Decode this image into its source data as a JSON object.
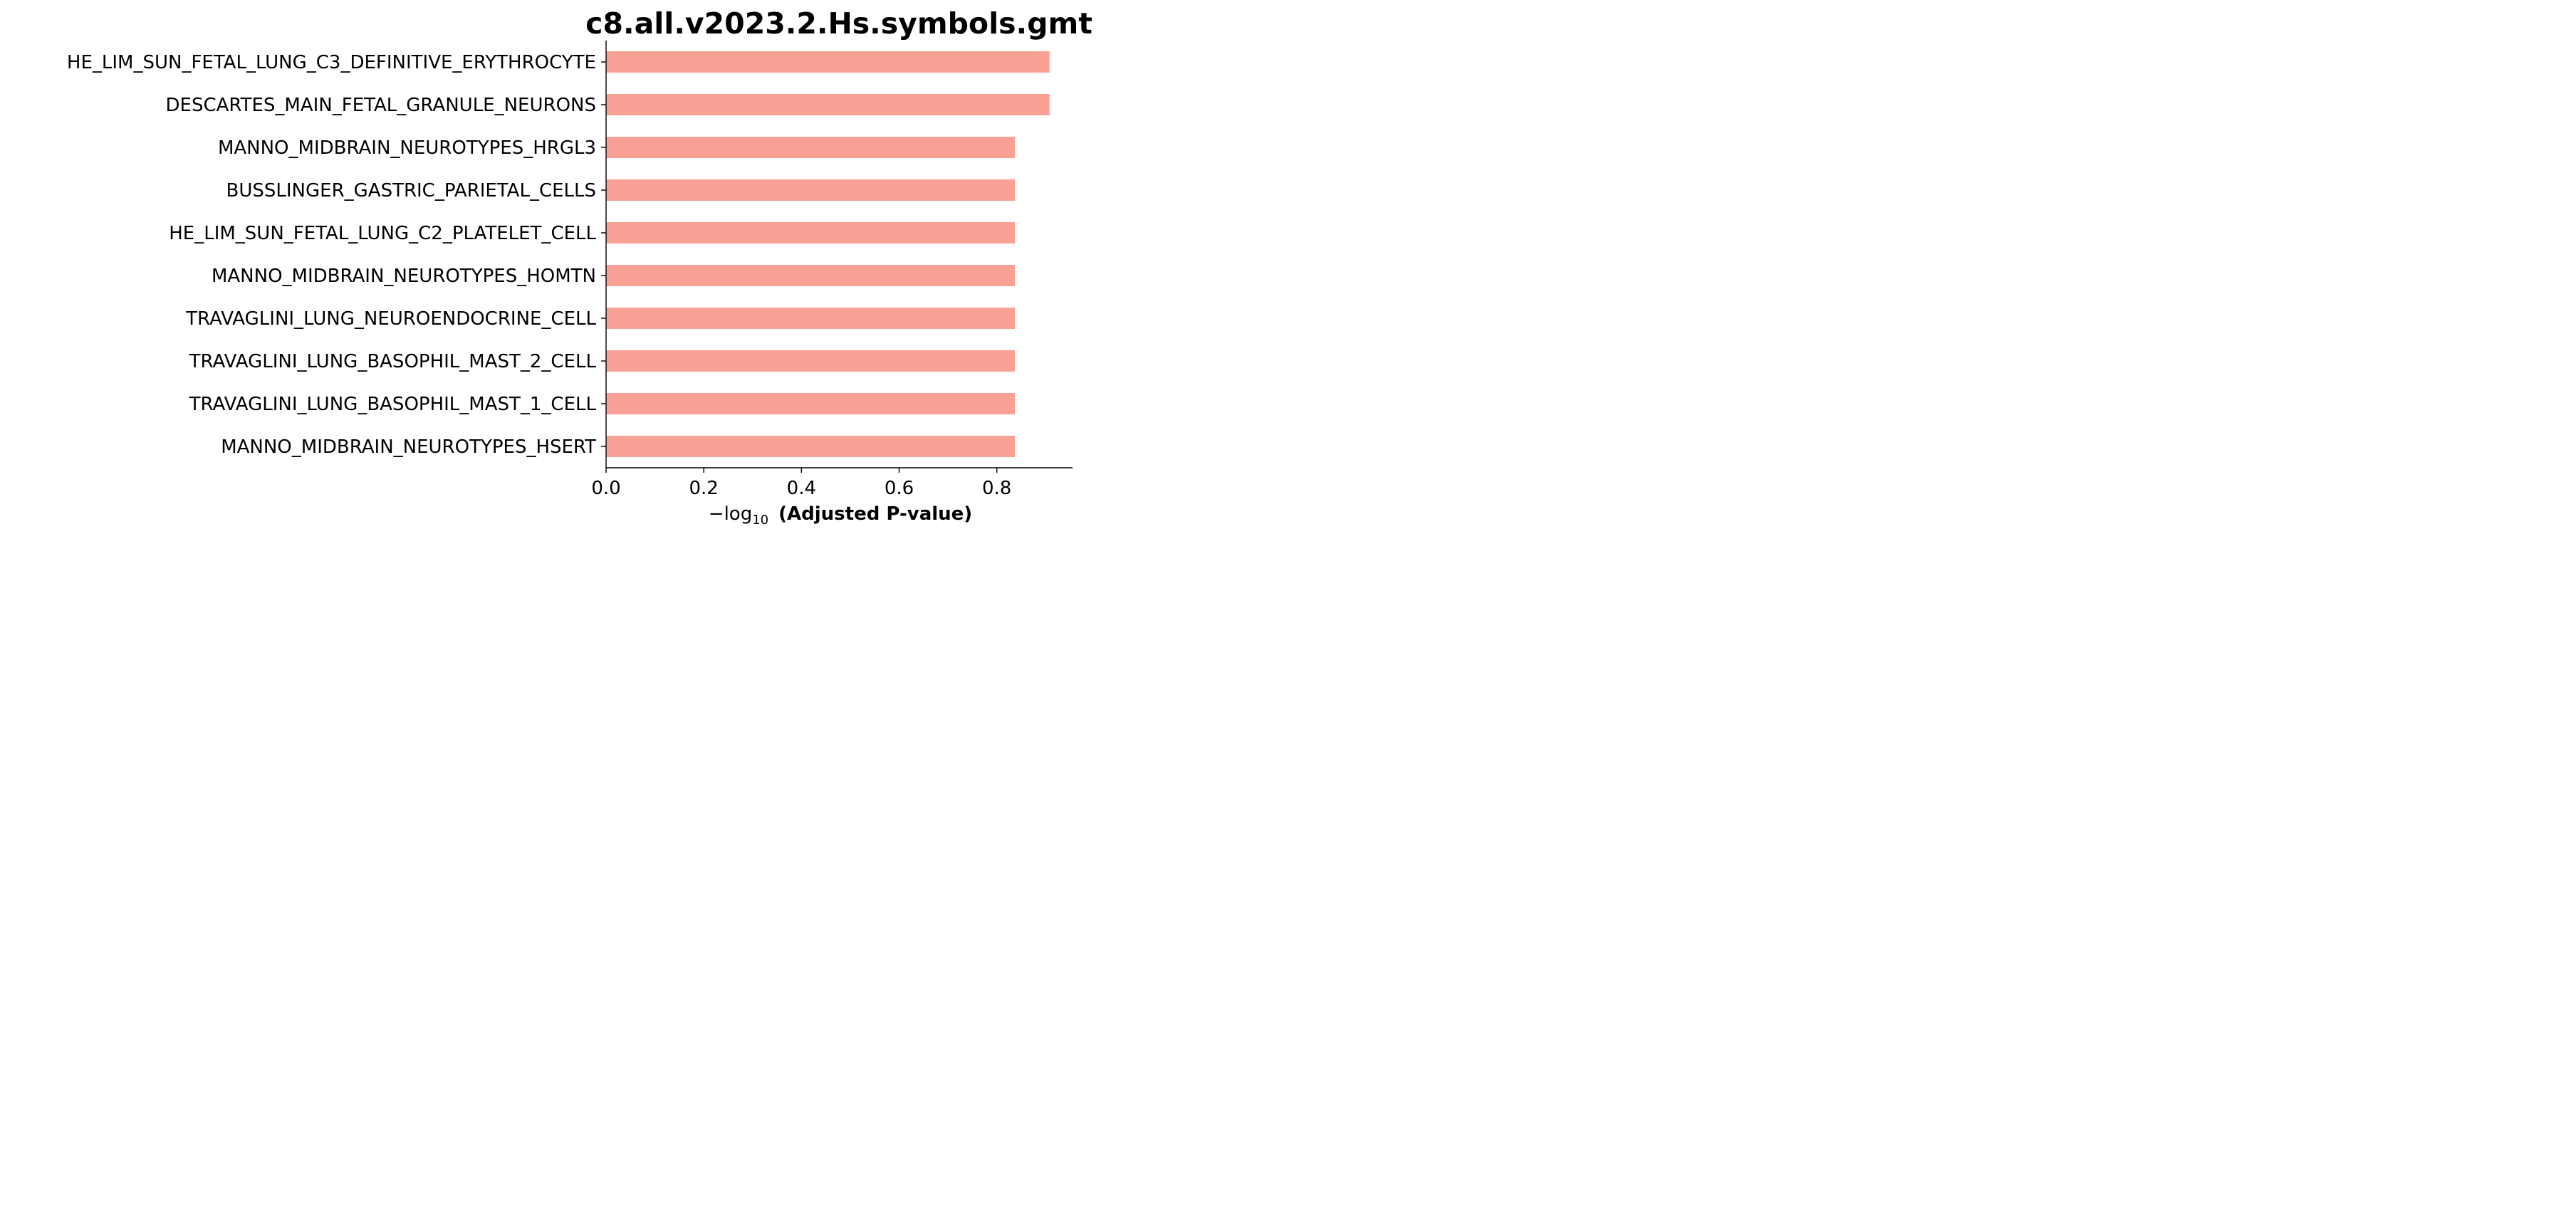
{
  "chart_data": {
    "type": "bar",
    "orientation": "horizontal",
    "title": "c8.all.v2023.2.Hs.symbols.gmt",
    "xlabel": {
      "prefix": "−log",
      "subscript": "10",
      "main": "(Adjusted P-value)"
    },
    "ylabel": "",
    "categories": [
      "HE_LIM_SUN_FETAL_LUNG_C3_DEFINITIVE_ERYTHROCYTE",
      "DESCARTES_MAIN_FETAL_GRANULE_NEURONS",
      "MANNO_MIDBRAIN_NEUROTYPES_HRGL3",
      "BUSSLINGER_GASTRIC_PARIETAL_CELLS",
      "HE_LIM_SUN_FETAL_LUNG_C2_PLATELET_CELL",
      "MANNO_MIDBRAIN_NEUROTYPES_HOMTN",
      "TRAVAGLINI_LUNG_NEUROENDOCRINE_CELL",
      "TRAVAGLINI_LUNG_BASOPHIL_MAST_2_CELL",
      "TRAVAGLINI_LUNG_BASOPHIL_MAST_1_CELL",
      "MANNO_MIDBRAIN_NEUROTYPES_HSERT"
    ],
    "values": [
      0.908,
      0.908,
      0.837,
      0.837,
      0.837,
      0.837,
      0.837,
      0.837,
      0.837,
      0.837
    ],
    "xlim": [
      0,
      0.955
    ],
    "xticks": [
      0.0,
      0.2,
      0.4,
      0.6,
      0.8
    ],
    "xtick_labels": [
      "0.0",
      "0.2",
      "0.4",
      "0.6",
      "0.8"
    ],
    "bar_color": "#f9a195",
    "grid": false
  }
}
